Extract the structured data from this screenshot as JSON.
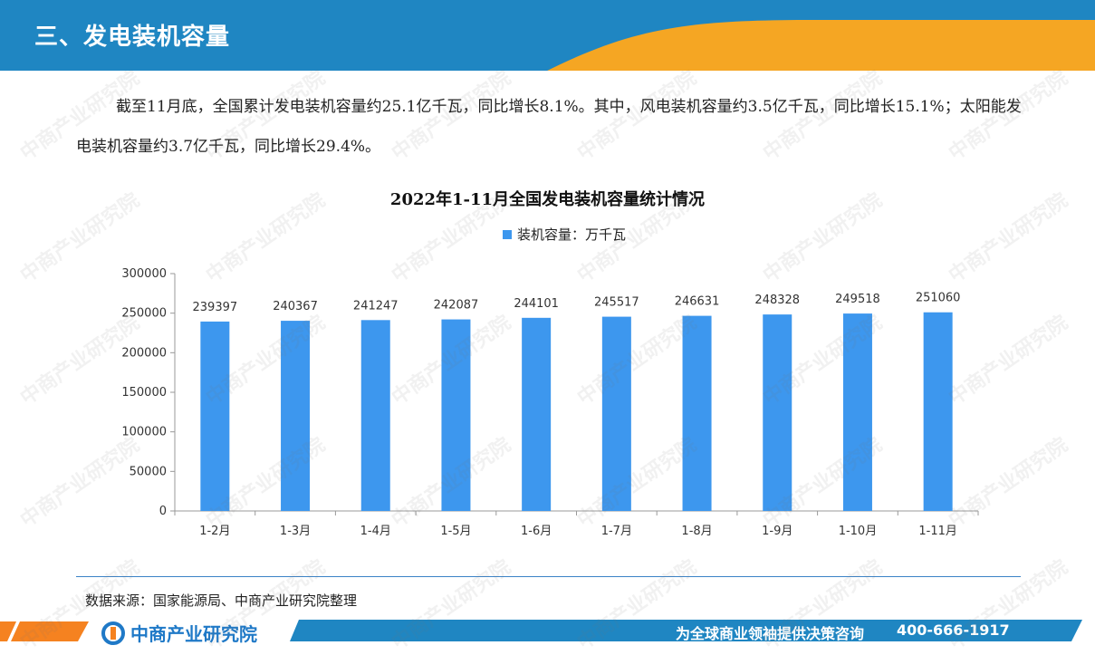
{
  "header": {
    "title": "三、发电装机容量"
  },
  "intro": {
    "text": "截至11月底，全国累计发电装机容量约25.1亿千瓦，同比增长8.1%。其中，风电装机容量约3.5亿千瓦，同比增长15.1%；太阳能发电装机容量约3.7亿千瓦，同比增长29.4%。"
  },
  "colors": {
    "bar": "#3d97ee",
    "header_blue": "#1f86c2",
    "header_orange": "#f5a623",
    "footer_blue": "#1f86c2",
    "footer_orange": "#f58220"
  },
  "chart_data": {
    "type": "bar",
    "title": "2022年1-11月全国发电装机容量统计情况",
    "categories": [
      "1-2月",
      "1-3月",
      "1-4月",
      "1-5月",
      "1-6月",
      "1-7月",
      "1-8月",
      "1-9月",
      "1-10月",
      "1-11月"
    ],
    "series": [
      {
        "name": "装机容量：万千瓦",
        "values": [
          239397,
          240367,
          241247,
          242087,
          244101,
          245517,
          246631,
          248328,
          249518,
          251060
        ]
      }
    ],
    "ylim": [
      0,
      300000
    ],
    "yticks": [
      "0",
      "50000",
      "100000",
      "150000",
      "200000",
      "250000",
      "300000"
    ],
    "legend": "top",
    "grid": false
  },
  "source": {
    "text": "数据来源：国家能源局、中商产业研究院整理"
  },
  "footer": {
    "brand": "中商产业研究院",
    "slogan": "为全球商业领袖提供决策咨询",
    "phone": "400-666-1917"
  },
  "watermark": {
    "text": "中商产业研究院"
  }
}
